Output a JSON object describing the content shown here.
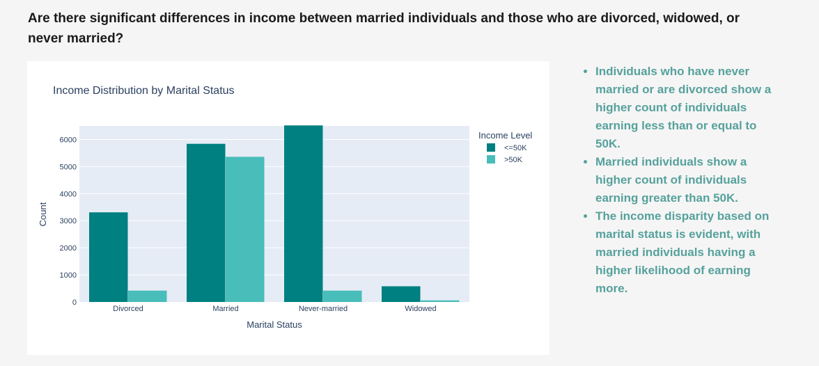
{
  "question": "Are there significant differences in income between married individuals and those who are divorced, widowed, or never married?",
  "chart_data": {
    "type": "bar",
    "title": "Income Distribution by Marital Status",
    "xlabel": "Marital Status",
    "ylabel": "Count",
    "categories": [
      "Divorced",
      "Married",
      "Never-married",
      "Widowed"
    ],
    "legend_title": "Income Level",
    "legend_position": "top-right",
    "series": [
      {
        "name": "<=50K",
        "values": [
          3310,
          5840,
          6520,
          580
        ],
        "color": "#008080"
      },
      {
        "name": ">50K",
        "values": [
          420,
          5360,
          420,
          60
        ],
        "color": "#48bdb9"
      }
    ],
    "ylim": [
      0,
      6500
    ],
    "yticks": [
      0,
      1000,
      2000,
      3000,
      4000,
      5000,
      6000
    ],
    "grid": true,
    "plot_background": "#e5ecf6"
  },
  "insights": [
    "Individuals who have never married or are divorced show a higher count of individuals earning less than or equal to 50K.",
    "Married individuals show a higher count of individuals earning greater than 50K.",
    "The income disparity based on marital status is evident, with married individuals having a higher likelihood of earning more."
  ]
}
